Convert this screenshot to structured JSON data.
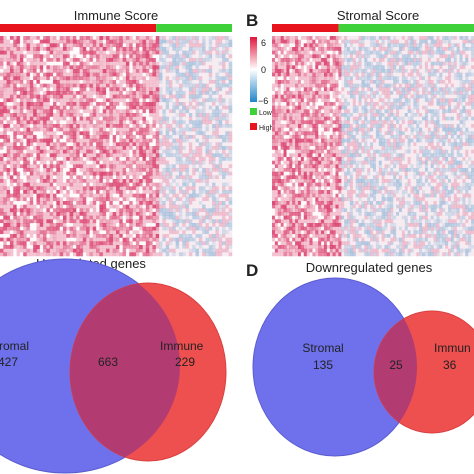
{
  "panels": {
    "A": {
      "letter": "",
      "title": "Immune Score",
      "group_split": 0.673,
      "colors": {
        "high": "#e8141d",
        "low": "#3fd13a"
      }
    },
    "B": {
      "letter": "B",
      "title": "Stromal Score",
      "group_split": 0.33,
      "colors": {
        "high": "#e8141d",
        "low": "#3fd13a"
      }
    },
    "C": {
      "letter": "",
      "title": "Upregulated genes",
      "sets": [
        {
          "label": "romal",
          "only": "427",
          "color": "#6f71ec"
        },
        {
          "label": "Immune",
          "only": "229",
          "color": "#ee4f4f"
        }
      ],
      "overlap": "663",
      "overlap_color": "#b23c72"
    },
    "D": {
      "letter": "D",
      "title": "Downregulated genes",
      "sets": [
        {
          "label": "Stromal",
          "only": "135",
          "color": "#6f71ec"
        },
        {
          "label": "Immun",
          "only": "36",
          "color": "#ee4f4f"
        }
      ],
      "overlap": "25",
      "overlap_color": "#b23c72"
    }
  },
  "legend": {
    "scale_max": "6",
    "scale_mid": "0",
    "scale_min": "−6",
    "low_label": "Low",
    "high_label": "High",
    "colors": {
      "max": "#e0163c",
      "mid": "#ffffff",
      "min": "#1f86c9",
      "low": "#3fd13a",
      "high": "#e8141d"
    }
  }
}
